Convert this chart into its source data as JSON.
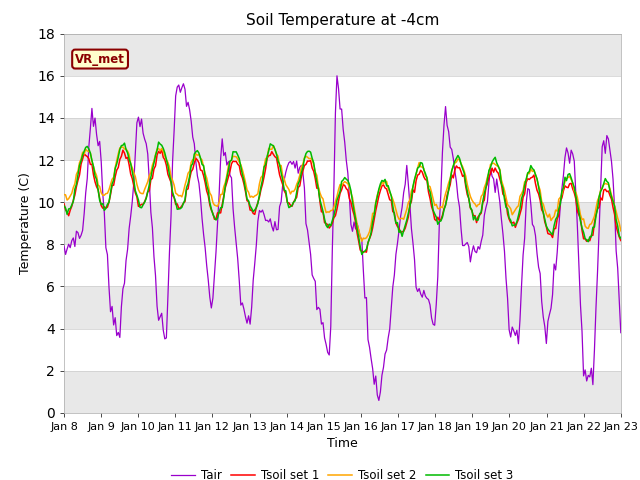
{
  "title": "Soil Temperature at -4cm",
  "xlabel": "Time",
  "ylabel": "Temperature (C)",
  "ylim": [
    0,
    18
  ],
  "x_tick_labels": [
    "Jan 8",
    "Jan 9",
    "Jan 10",
    "Jan 11",
    "Jan 12",
    "Jan 13",
    "Jan 14",
    "Jan 15",
    "Jan 16",
    "Jan 17",
    "Jan 18",
    "Jan 19",
    "Jan 20",
    "Jan 21",
    "Jan 22",
    "Jan 23"
  ],
  "fig_bg_color": "#ffffff",
  "plot_bg_color": "#ffffff",
  "band_color_dark": "#e8e8e8",
  "annotation_text": "VR_met",
  "annotation_bg": "#ffffcc",
  "annotation_border": "#8B0000",
  "tair_color": "#9900cc",
  "tsoil1_color": "#ff0000",
  "tsoil2_color": "#ffa500",
  "tsoil3_color": "#00bb00",
  "legend_labels": [
    "Tair",
    "Tsoil set 1",
    "Tsoil set 2",
    "Tsoil set 3"
  ],
  "title_fontsize": 11,
  "axis_fontsize": 9,
  "tick_fontsize": 8
}
